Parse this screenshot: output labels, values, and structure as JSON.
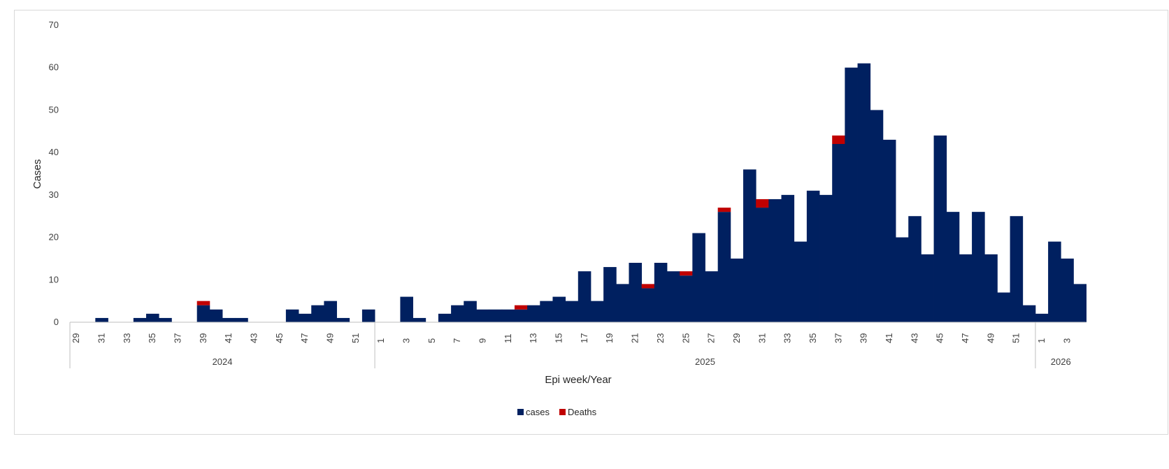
{
  "chart_data": {
    "type": "bar",
    "stacked": true,
    "xlabel": "Epi week/Year",
    "ylabel": "Cases",
    "ylim": [
      0,
      70
    ],
    "yticks": [
      0,
      10,
      20,
      30,
      40,
      50,
      60,
      70
    ],
    "grid": false,
    "legend_position": "bottom",
    "groups": [
      {
        "label": "2024",
        "weeks": [
          29,
          30,
          31,
          32,
          33,
          34,
          35,
          36,
          37,
          38,
          39,
          40,
          41,
          42,
          43,
          44,
          45,
          46,
          47,
          48,
          49,
          50,
          51,
          52
        ]
      },
      {
        "label": "2025",
        "weeks": [
          1,
          2,
          3,
          4,
          5,
          6,
          7,
          8,
          9,
          10,
          11,
          12,
          13,
          14,
          15,
          16,
          17,
          18,
          19,
          20,
          21,
          22,
          23,
          24,
          25,
          26,
          27,
          28,
          29,
          30,
          31,
          32,
          33,
          34,
          35,
          36,
          37,
          38,
          39,
          40,
          41,
          42,
          43,
          44,
          45,
          46,
          47,
          48,
          49,
          50,
          51,
          52
        ]
      },
      {
        "label": "2026",
        "weeks": [
          1,
          2,
          3,
          4
        ]
      }
    ],
    "series": [
      {
        "name": "cases",
        "color": "#002060",
        "values": [
          0,
          0,
          1,
          0,
          0,
          1,
          2,
          1,
          0,
          0,
          4,
          3,
          1,
          1,
          0,
          0,
          0,
          3,
          2,
          4,
          5,
          1,
          0,
          3,
          0,
          0,
          6,
          1,
          0,
          2,
          4,
          5,
          3,
          3,
          3,
          3,
          4,
          5,
          6,
          5,
          12,
          5,
          13,
          9,
          14,
          8,
          14,
          12,
          11,
          21,
          12,
          26,
          15,
          36,
          27,
          29,
          30,
          19,
          31,
          30,
          42,
          60,
          61,
          50,
          43,
          20,
          25,
          16,
          44,
          26,
          16,
          26,
          16,
          7,
          25,
          4,
          2,
          19,
          15,
          9
        ]
      },
      {
        "name": "Deaths",
        "color": "#c00000",
        "values": [
          0,
          0,
          0,
          0,
          0,
          0,
          0,
          0,
          0,
          0,
          1,
          0,
          0,
          0,
          0,
          0,
          0,
          0,
          0,
          0,
          0,
          0,
          0,
          0,
          0,
          0,
          0,
          0,
          0,
          0,
          0,
          0,
          0,
          0,
          0,
          1,
          0,
          0,
          0,
          0,
          0,
          0,
          0,
          0,
          0,
          1,
          0,
          0,
          1,
          0,
          0,
          1,
          0,
          0,
          2,
          0,
          0,
          0,
          0,
          0,
          2,
          0,
          0,
          0,
          0,
          0,
          0,
          0,
          0,
          0,
          0,
          0,
          0,
          0,
          0,
          0,
          0,
          0,
          0,
          0
        ]
      }
    ]
  }
}
